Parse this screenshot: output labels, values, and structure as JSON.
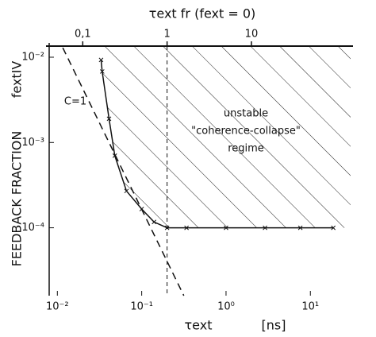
{
  "chart_data": {
    "type": "line",
    "title": "τext fr (fext = 0)",
    "x_label": "τext",
    "x_unit": "[ns]",
    "y_label": "FEEDBACK FRACTION",
    "y_symbol": "fextIV",
    "annotations": [
      "C=1",
      "unstable",
      "\"coherence-collapse\"",
      "regime"
    ],
    "log_x": true,
    "log_y": true,
    "xlim": [
      0.008,
      30
    ],
    "ylim": [
      1.6e-05,
      0.0135
    ],
    "xticks": [
      {
        "value": 0.01,
        "label": "10⁻²"
      },
      {
        "value": 0.1,
        "label": "10⁻¹"
      },
      {
        "value": 1,
        "label": "10⁰"
      },
      {
        "value": 10,
        "label": "10¹"
      }
    ],
    "yticks": [
      {
        "value": 0.01,
        "label": "10⁻²"
      },
      {
        "value": 0.001,
        "label": "10⁻³"
      },
      {
        "value": 0.0001,
        "label": "10⁻⁴"
      }
    ],
    "x2lim": [
      0.04,
      150
    ],
    "x2ticks": [
      {
        "value": 0.1,
        "label": "0,1"
      },
      1,
      10
    ],
    "vlines": [
      0.2
    ],
    "series": [
      {
        "color": "#111111",
        "style": "solid",
        "markers": true,
        "x": [
          0.033,
          0.034,
          0.041,
          0.048,
          0.066,
          0.1,
          0.14,
          0.2,
          0.34,
          1.0,
          2.9,
          7.6,
          18.7
        ],
        "values": [
          0.0093,
          0.0068,
          0.0019,
          0.0007,
          0.00027,
          0.000166,
          0.000117,
          0.0001,
          0.0001,
          0.0001,
          0.0001,
          0.0001,
          0.0001
        ]
      },
      {
        "color": "#111111",
        "style": "dashed",
        "markers": false,
        "x": [
          0.0116,
          0.316
        ],
        "values": [
          0.0129,
          1.6e-05
        ]
      }
    ]
  }
}
